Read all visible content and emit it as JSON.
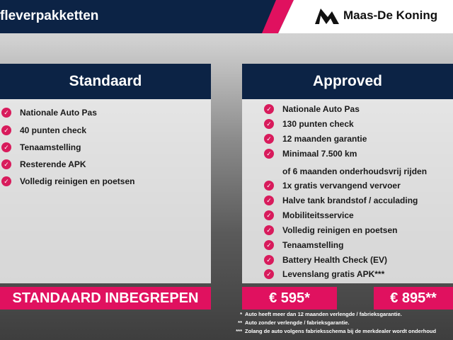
{
  "header": {
    "title": "fleverpakketten",
    "brand": "Maas-De Koning",
    "colors": {
      "navy": "#0c2345",
      "pink": "#e0115f"
    }
  },
  "standaard": {
    "title": "Standaard",
    "items": [
      "Nationale Auto Pas",
      "40 punten check",
      "Tenaamstelling",
      "Resterende APK",
      "Volledig reinigen en poetsen"
    ],
    "price": "STANDAARD INBEGREPEN"
  },
  "approved": {
    "title": "Approved",
    "items": [
      "Nationale Auto Pas",
      "130 punten check",
      "12 maanden garantie",
      "Minimaal 7.500 km",
      "of 6 maanden onderhoudsvrij rijden",
      "1x gratis vervangend vervoer",
      "Halve tank brandstof / acculading",
      "Mobiliteitsservice",
      "Volledig reinigen en poetsen",
      "Tenaamstelling",
      "Battery Health Check (EV)",
      "Levenslang gratis APK***"
    ],
    "price1": "€ 595*",
    "price2": "€ 895**"
  },
  "notes": [
    {
      "mark": "*",
      "text": "Auto heeft meer dan 12 maanden verlengde / fabrieksgarantie."
    },
    {
      "mark": "**",
      "text": "Auto zonder verlengde / fabrieksgarantie."
    },
    {
      "mark": "***",
      "text": "Zolang de auto volgens fabrieksschema bij de merkdealer wordt onderhoud"
    }
  ]
}
